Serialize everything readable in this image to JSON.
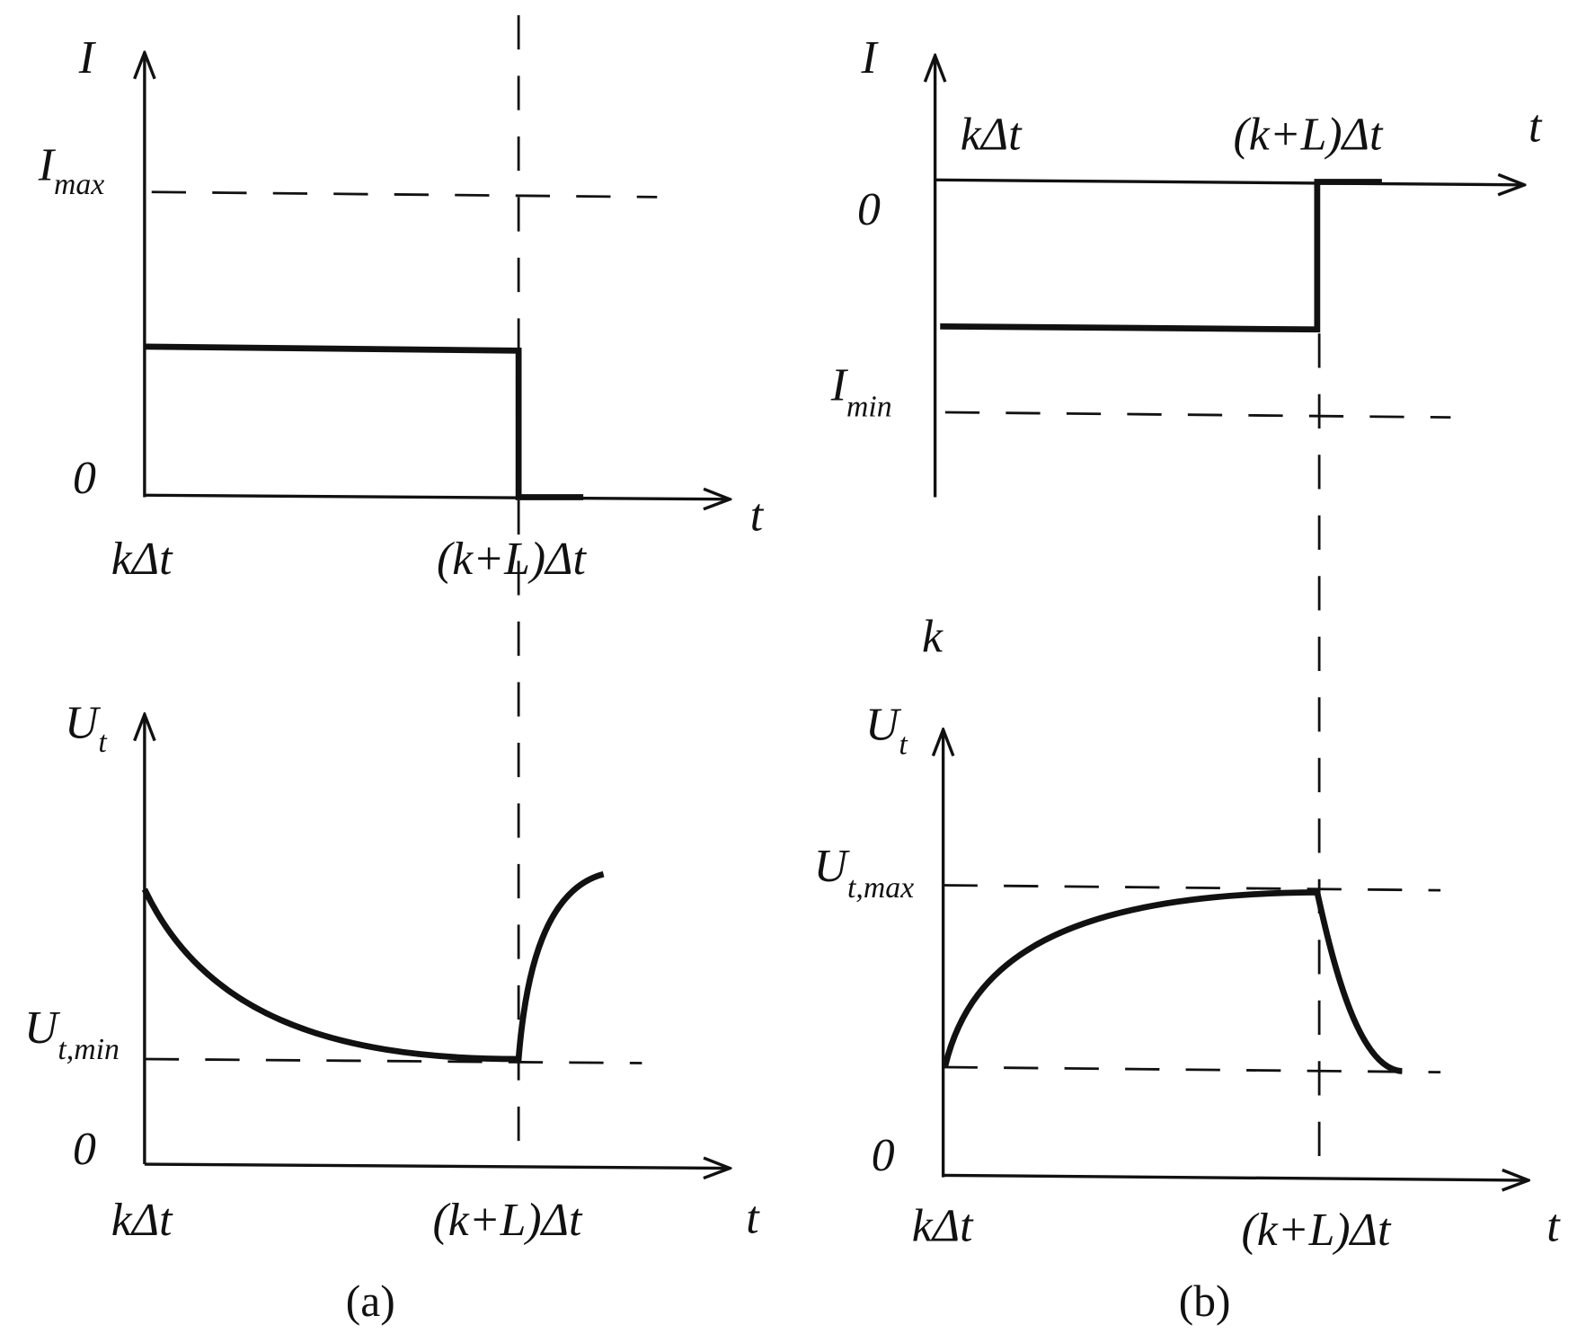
{
  "panels": [
    {
      "caption": "(a)",
      "current": {
        "axis_label": "I",
        "limit_label": {
          "base": "I",
          "sub": "max"
        },
        "zero": "0",
        "time_label": "t",
        "start": "kΔt",
        "end": "(k+L)Δt"
      },
      "voltage": {
        "axis_label": {
          "base": "U",
          "sub": "t"
        },
        "limit_label": {
          "base": "U",
          "sub": "t,min"
        },
        "zero": "0",
        "time_label": "t",
        "start": "kΔt",
        "end": "(k+L)Δt"
      }
    },
    {
      "caption": "(b)",
      "current": {
        "axis_label": "I",
        "limit_label": {
          "base": "I",
          "sub": "min"
        },
        "zero": "0",
        "time_label": "t",
        "start": "kΔt",
        "end": "(k+L)Δt"
      },
      "voltage": {
        "axis_label": {
          "base": "U",
          "sub": "t"
        },
        "limit_label": {
          "base": "U",
          "sub": "t,max"
        },
        "zero": "0",
        "time_label": "t",
        "start": "kΔt",
        "end": "(k+L)Δt"
      }
    }
  ],
  "stray_label": "k"
}
